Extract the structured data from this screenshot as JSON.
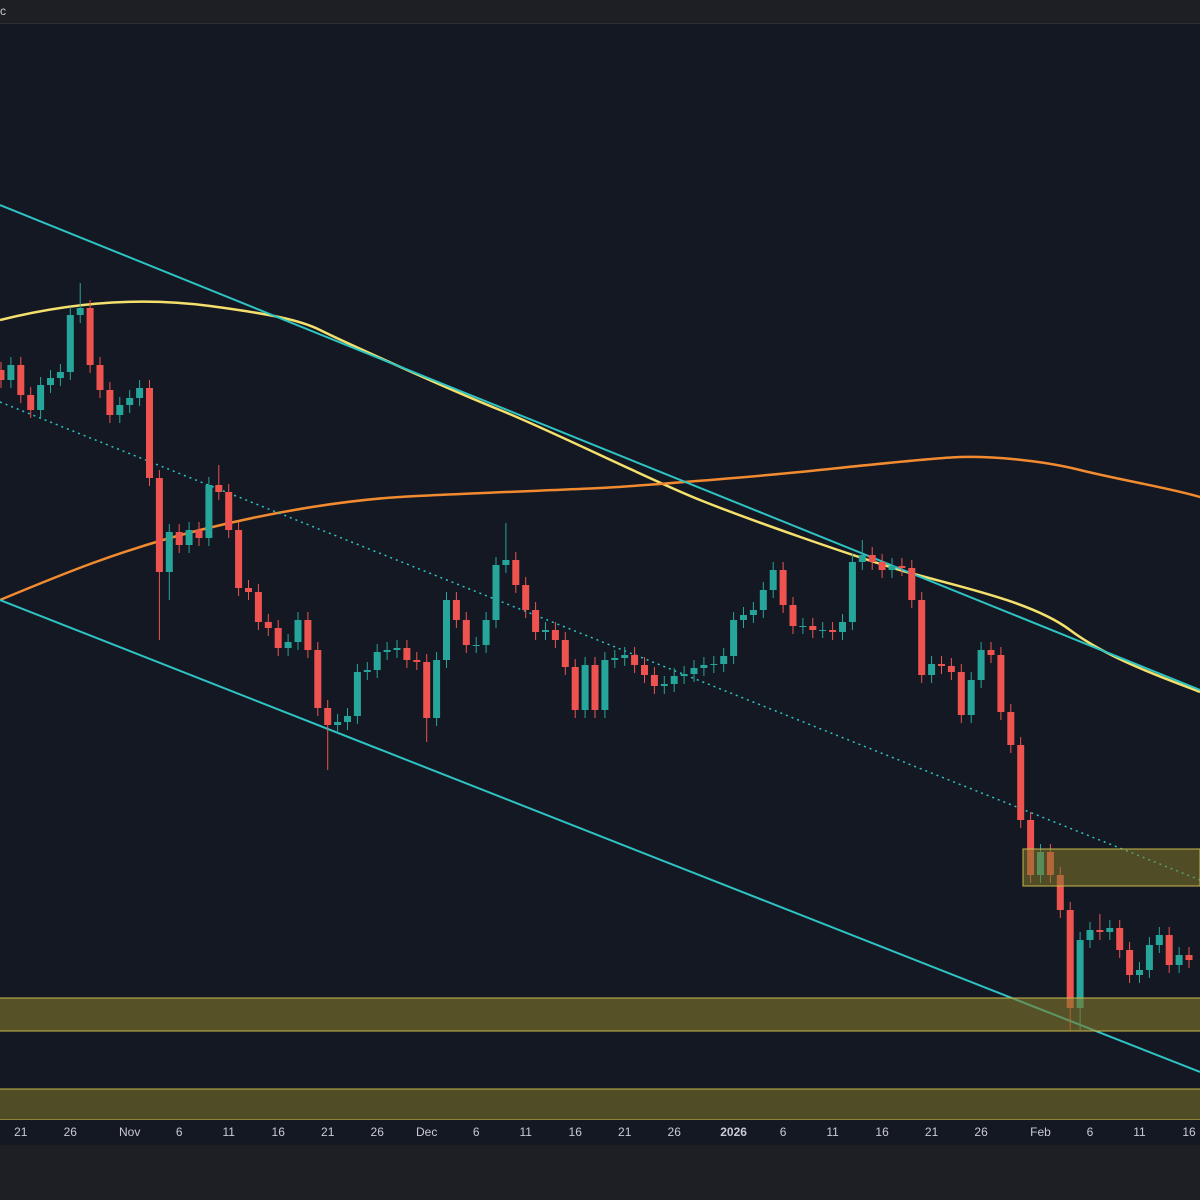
{
  "header_text": "c",
  "chart_data": {
    "type": "candlestick",
    "up_color": "#26a69a",
    "down_color": "#ef5350",
    "ylim": [
      0,
      1100
    ],
    "categories": [
      null,
      null,
      "21",
      null,
      null,
      null,
      null,
      "26",
      null,
      null,
      null,
      null,
      null,
      "Nov",
      null,
      null,
      null,
      null,
      "6",
      null,
      null,
      null,
      null,
      "11",
      null,
      null,
      null,
      null,
      "16",
      null,
      null,
      null,
      null,
      "21",
      null,
      null,
      null,
      null,
      "26",
      null,
      null,
      null,
      null,
      "Dec",
      null,
      null,
      null,
      null,
      "6",
      null,
      null,
      null,
      null,
      "11",
      null,
      null,
      null,
      null,
      "16",
      null,
      null,
      null,
      null,
      "21",
      null,
      null,
      null,
      null,
      "26",
      null,
      null,
      null,
      null,
      null,
      "2026",
      null,
      null,
      null,
      null,
      "6",
      null,
      null,
      null,
      null,
      "11",
      null,
      null,
      null,
      null,
      "16",
      null,
      null,
      null,
      null,
      "21",
      null,
      null,
      null,
      null,
      "26",
      null,
      null,
      null,
      null,
      null,
      "Feb",
      null,
      null,
      null,
      null,
      "6",
      null,
      null,
      null,
      null,
      "11",
      null,
      null,
      null,
      null,
      "16"
    ],
    "open": [
      750,
      740,
      755,
      725,
      710,
      735,
      742,
      748,
      805,
      812,
      755,
      730,
      705,
      715,
      722,
      732,
      642,
      548,
      588,
      575,
      590,
      582,
      635,
      628,
      590,
      532,
      528,
      498,
      492,
      472,
      478,
      500,
      470,
      412,
      395,
      398,
      404,
      448,
      450,
      468,
      470,
      472,
      460,
      458,
      402,
      460,
      520,
      500,
      475,
      475,
      500,
      555,
      560,
      535,
      510,
      488,
      490,
      480,
      453,
      410,
      455,
      410,
      460,
      462,
      465,
      455,
      445,
      434,
      436,
      444,
      446,
      452,
      455,
      456,
      464,
      500,
      505,
      510,
      530,
      550,
      515,
      494,
      494,
      490,
      490,
      488,
      498,
      558,
      565,
      558,
      550,
      554,
      552,
      520,
      445,
      456,
      454,
      448,
      405,
      440,
      470,
      465,
      408,
      375,
      300,
      245,
      268,
      245,
      210,
      112,
      180,
      190,
      188,
      192,
      170,
      145,
      150,
      175,
      185,
      155,
      165
    ],
    "high": [
      758,
      763,
      763,
      733,
      743,
      750,
      756,
      813,
      837,
      820,
      763,
      738,
      723,
      730,
      740,
      740,
      650,
      596,
      596,
      598,
      598,
      643,
      655,
      636,
      598,
      540,
      536,
      506,
      500,
      486,
      508,
      508,
      478,
      420,
      406,
      412,
      456,
      458,
      476,
      478,
      480,
      480,
      468,
      466,
      468,
      528,
      528,
      508,
      483,
      508,
      563,
      597,
      568,
      543,
      518,
      498,
      498,
      488,
      461,
      463,
      463,
      468,
      470,
      473,
      473,
      463,
      453,
      444,
      452,
      454,
      460,
      463,
      464,
      472,
      508,
      513,
      518,
      538,
      558,
      558,
      523,
      502,
      502,
      498,
      498,
      506,
      566,
      580,
      573,
      566,
      562,
      562,
      560,
      528,
      464,
      464,
      462,
      456,
      448,
      478,
      478,
      473,
      416,
      383,
      308,
      276,
      276,
      253,
      218,
      188,
      198,
      206,
      200,
      200,
      178,
      158,
      183,
      193,
      193,
      173,
      173
    ],
    "low": [
      732,
      732,
      717,
      702,
      702,
      727,
      734,
      740,
      797,
      747,
      722,
      697,
      697,
      707,
      714,
      634,
      480,
      520,
      567,
      567,
      574,
      574,
      620,
      582,
      524,
      520,
      490,
      484,
      464,
      464,
      470,
      462,
      404,
      350,
      387,
      390,
      396,
      440,
      442,
      460,
      462,
      452,
      450,
      378,
      394,
      452,
      492,
      467,
      467,
      467,
      492,
      547,
      527,
      502,
      480,
      480,
      472,
      445,
      402,
      402,
      402,
      402,
      452,
      454,
      447,
      437,
      426,
      426,
      428,
      436,
      438,
      444,
      447,
      448,
      456,
      492,
      497,
      502,
      522,
      507,
      486,
      486,
      482,
      482,
      480,
      480,
      490,
      550,
      550,
      542,
      542,
      544,
      512,
      437,
      437,
      446,
      440,
      397,
      397,
      432,
      457,
      400,
      367,
      292,
      237,
      237,
      237,
      202,
      90,
      90,
      172,
      180,
      180,
      162,
      137,
      137,
      142,
      167,
      147,
      147,
      152
    ],
    "close": [
      740,
      755,
      725,
      710,
      735,
      742,
      748,
      805,
      812,
      755,
      730,
      705,
      715,
      722,
      732,
      642,
      548,
      588,
      575,
      590,
      582,
      635,
      628,
      590,
      532,
      528,
      498,
      492,
      472,
      478,
      500,
      470,
      412,
      395,
      398,
      404,
      448,
      450,
      468,
      470,
      472,
      460,
      458,
      402,
      460,
      520,
      500,
      475,
      475,
      500,
      555,
      560,
      535,
      510,
      488,
      490,
      480,
      453,
      410,
      455,
      410,
      460,
      462,
      465,
      455,
      445,
      434,
      436,
      444,
      446,
      452,
      455,
      456,
      464,
      500,
      505,
      510,
      530,
      550,
      515,
      494,
      494,
      490,
      490,
      488,
      498,
      558,
      565,
      558,
      550,
      554,
      552,
      520,
      445,
      456,
      454,
      448,
      405,
      440,
      470,
      465,
      408,
      375,
      300,
      245,
      268,
      245,
      210,
      112,
      180,
      190,
      188,
      192,
      170,
      145,
      150,
      175,
      185,
      155,
      165,
      160
    ]
  }
}
